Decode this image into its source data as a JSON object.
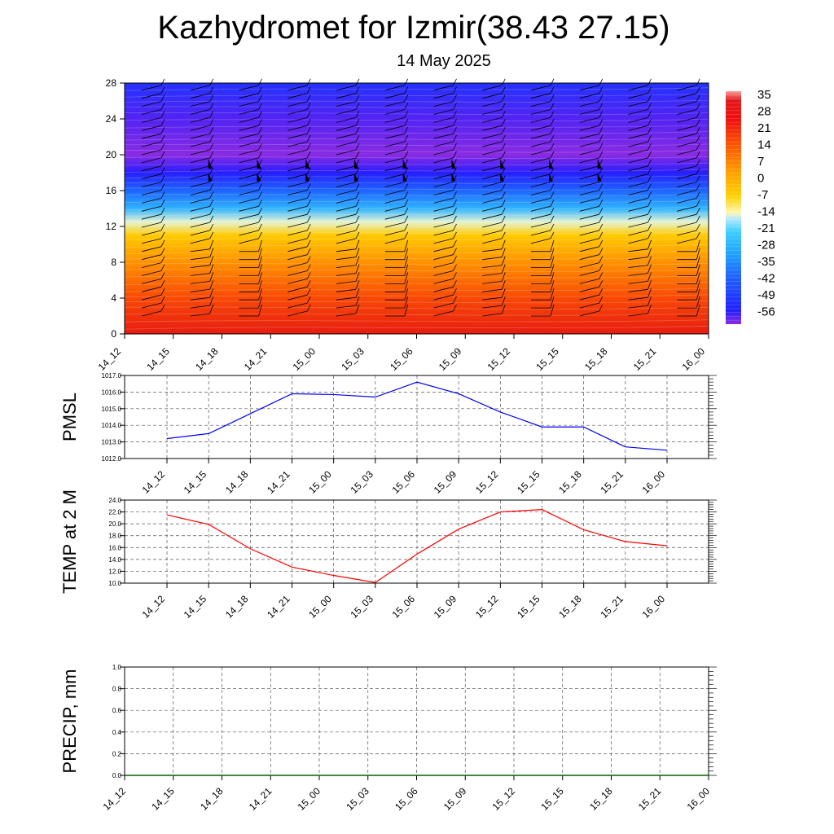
{
  "title": "Kazhydromet for Izmir(38.43 27.15)",
  "subtitle": "14 May 2025",
  "chart_data": [
    {
      "type": "heatmap",
      "name": "vertical cross-section",
      "x_ticks": [
        "14_12",
        "14_15",
        "14_18",
        "14_21",
        "15_00",
        "15_03",
        "15_06",
        "15_09",
        "15_12",
        "15_15",
        "15_18",
        "15_21",
        "16_00"
      ],
      "y_ticks": [
        0,
        4,
        8,
        12,
        16,
        20,
        24,
        28
      ],
      "ylim": [
        0,
        28
      ],
      "colorbar_labels": [
        "35",
        "28",
        "21",
        "14",
        "7",
        "0",
        "-7",
        "-14",
        "-21",
        "-28",
        "-35",
        "-42",
        "-49",
        "-56"
      ],
      "colorbar_range": [
        -60,
        38
      ],
      "temperature_profile": [
        {
          "y": 0,
          "value": 35
        },
        {
          "y": 4,
          "value": 25
        },
        {
          "y": 8,
          "value": 14
        },
        {
          "y": 11,
          "value": 3
        },
        {
          "y": 12.5,
          "value": -9
        },
        {
          "y": 14,
          "value": -22
        },
        {
          "y": 16,
          "value": -38
        },
        {
          "y": 18,
          "value": -55
        },
        {
          "y": 20,
          "value": -62
        },
        {
          "y": 24,
          "value": -58
        },
        {
          "y": 28,
          "value": -50
        }
      ],
      "wind_barbs": "present"
    },
    {
      "type": "line",
      "ylabel": "PMSL",
      "categories": [
        "14_12",
        "14_15",
        "14_18",
        "14_21",
        "15_00",
        "15_03",
        "15_06",
        "15_09",
        "15_12",
        "15_15",
        "15_18",
        "15_21",
        "16_00"
      ],
      "values": [
        1013.2,
        1013.5,
        1014.7,
        1015.9,
        1015.85,
        1015.7,
        1016.6,
        1015.9,
        1014.8,
        1013.9,
        1013.9,
        1012.7,
        1012.5
      ],
      "ylim": [
        1012.0,
        1017.0
      ],
      "y_ticks": [
        "1012.0",
        "1013.0",
        "1014.0",
        "1015.0",
        "1016.0",
        "1017.0"
      ],
      "color": "#0000ff",
      "grid": true
    },
    {
      "type": "line",
      "ylabel": "TEMP at 2 M",
      "categories": [
        "14_12",
        "14_15",
        "14_18",
        "14_21",
        "15_00",
        "15_03",
        "15_06",
        "15_09",
        "15_12",
        "15_15",
        "15_18",
        "15_21",
        "16_00"
      ],
      "values": [
        21.5,
        19.9,
        15.8,
        12.7,
        11.3,
        10.1,
        14.9,
        19.1,
        22.0,
        22.4,
        19.0,
        17.0,
        16.3
      ],
      "ylim": [
        10.0,
        24.0
      ],
      "y_ticks": [
        "10.0",
        "12.0",
        "14.0",
        "16.0",
        "18.0",
        "20.0",
        "22.0",
        "24.0"
      ],
      "color": "#ff0000",
      "grid": true
    },
    {
      "type": "line",
      "ylabel": "PRECIP, mm",
      "categories": [
        "14_12",
        "14_15",
        "14_18",
        "14_21",
        "15_00",
        "15_03",
        "15_06",
        "15_09",
        "15_12",
        "15_15",
        "15_18",
        "15_21",
        "16_00"
      ],
      "values": [
        0,
        0,
        0,
        0,
        0,
        0,
        0,
        0,
        0,
        0,
        0,
        0,
        0
      ],
      "ylim": [
        0.0,
        1.0
      ],
      "y_ticks": [
        "0.0",
        "0.2",
        "0.4",
        "0.6",
        "0.8",
        "1.0"
      ],
      "color": "#006400",
      "grid": true
    }
  ]
}
